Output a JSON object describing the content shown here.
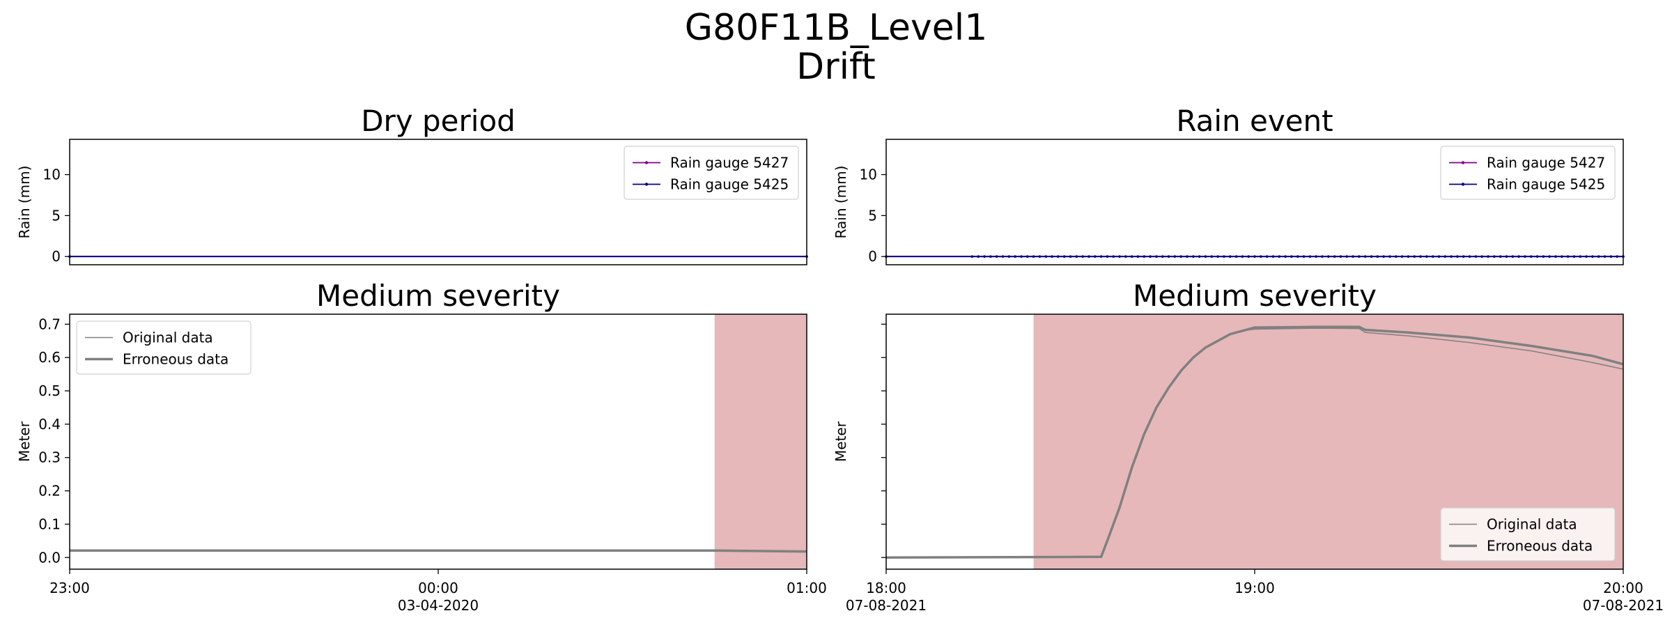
{
  "title": "G80F11B_Level1",
  "subtitle": "Drift",
  "colors": {
    "gauge_5427": "#800080",
    "gauge_5425": "#000080",
    "level_line": "#808080",
    "error_shade": "#e6b8ba"
  },
  "chart_data": [
    {
      "type": "line",
      "title": "Dry period",
      "ylabel": "Rain (mm)",
      "ylim": [
        -1,
        14.3
      ],
      "yticks": [
        0,
        5,
        10
      ],
      "xlim": [
        0,
        120
      ],
      "legend": "upper right",
      "series": [
        {
          "name": "Rain gauge 5427",
          "color": "#800080",
          "marker": true,
          "points": [
            [
              0,
              0
            ],
            [
              120,
              0
            ]
          ]
        },
        {
          "name": "Rain gauge 5425",
          "color": "#000080",
          "marker": true,
          "points": [
            [
              0,
              0
            ],
            [
              120,
              0
            ]
          ]
        }
      ]
    },
    {
      "type": "line",
      "title": "Rain event",
      "ylabel": "Rain (mm)",
      "ylim": [
        -1,
        14.3
      ],
      "yticks": [
        0,
        5,
        10
      ],
      "xlim": [
        0,
        120
      ],
      "legend": "upper right",
      "series": [
        {
          "name": "Rain gauge 5427",
          "color": "#800080",
          "marker": true,
          "points": [
            [
              0,
              0
            ],
            [
              120,
              0
            ]
          ]
        },
        {
          "name": "Rain gauge 5425",
          "color": "#000080",
          "marker": true,
          "points": [
            [
              0,
              0
            ],
            [
              14,
              0
            ],
            [
              15,
              0
            ],
            [
              16,
              0
            ],
            [
              17,
              0
            ],
            [
              18,
              0
            ],
            [
              19,
              0
            ],
            [
              20,
              0
            ],
            [
              21,
              0
            ],
            [
              22,
              0
            ],
            [
              23,
              0
            ],
            [
              24,
              0
            ],
            [
              25,
              0
            ],
            [
              26,
              0
            ],
            [
              27,
              0
            ],
            [
              28,
              0
            ],
            [
              29,
              0
            ],
            [
              30,
              0
            ],
            [
              31,
              0
            ],
            [
              32,
              0
            ],
            [
              33,
              0
            ],
            [
              34,
              0
            ],
            [
              35,
              0
            ],
            [
              36,
              0
            ],
            [
              37,
              0
            ],
            [
              38,
              0
            ],
            [
              39,
              0
            ],
            [
              40,
              0
            ],
            [
              41,
              0
            ],
            [
              42,
              0
            ],
            [
              43,
              0
            ],
            [
              44,
              0
            ],
            [
              45,
              0
            ],
            [
              46,
              0
            ],
            [
              47,
              0
            ],
            [
              48,
              0
            ],
            [
              49,
              0
            ],
            [
              50,
              0
            ],
            [
              51,
              0
            ],
            [
              52,
              0
            ],
            [
              53,
              0
            ],
            [
              54,
              0
            ],
            [
              55,
              0
            ],
            [
              56,
              0
            ],
            [
              57,
              0
            ],
            [
              58,
              0
            ],
            [
              59,
              0
            ],
            [
              60,
              0
            ],
            [
              61,
              0
            ],
            [
              62,
              0
            ],
            [
              63,
              0
            ],
            [
              64,
              0
            ],
            [
              65,
              0
            ],
            [
              66,
              0
            ],
            [
              67,
              0
            ],
            [
              68,
              0
            ],
            [
              69,
              0
            ],
            [
              70,
              0
            ],
            [
              71,
              0
            ],
            [
              72,
              0
            ],
            [
              73,
              0
            ],
            [
              74,
              0
            ],
            [
              75,
              0
            ],
            [
              76,
              0
            ],
            [
              77,
              0
            ],
            [
              78,
              0
            ],
            [
              79,
              0
            ],
            [
              80,
              0
            ],
            [
              81,
              0
            ],
            [
              82,
              0
            ],
            [
              83,
              0
            ],
            [
              84,
              0
            ],
            [
              85,
              0
            ],
            [
              86,
              0
            ],
            [
              87,
              0
            ],
            [
              88,
              0
            ],
            [
              89,
              0
            ],
            [
              90,
              0
            ],
            [
              91,
              0
            ],
            [
              92,
              0
            ],
            [
              93,
              0
            ],
            [
              94,
              0
            ],
            [
              95,
              0
            ],
            [
              96,
              0
            ],
            [
              97,
              0
            ],
            [
              98,
              0
            ],
            [
              99,
              0
            ],
            [
              100,
              0
            ],
            [
              101,
              0
            ],
            [
              102,
              0
            ],
            [
              103,
              0
            ],
            [
              104,
              0
            ],
            [
              105,
              0
            ],
            [
              106,
              0
            ],
            [
              107,
              0
            ],
            [
              108,
              0
            ],
            [
              109,
              0
            ],
            [
              110,
              0
            ],
            [
              111,
              0
            ],
            [
              112,
              0
            ],
            [
              113,
              0
            ],
            [
              114,
              0
            ],
            [
              115,
              0
            ],
            [
              116,
              0
            ],
            [
              117,
              0
            ],
            [
              118,
              0
            ],
            [
              119,
              0
            ],
            [
              120,
              0
            ]
          ]
        }
      ]
    },
    {
      "type": "line",
      "title": "Medium severity",
      "ylabel": "Meter",
      "ylim": [
        -0.035,
        0.73
      ],
      "yticks": [
        0.0,
        0.1,
        0.2,
        0.3,
        0.4,
        0.5,
        0.6,
        0.7
      ],
      "xlim": [
        0,
        120
      ],
      "xticks": [
        {
          "pos": 0,
          "label": "23:00",
          "sub": ""
        },
        {
          "pos": 60,
          "label": "00:00",
          "sub": "03-04-2020"
        },
        {
          "pos": 120,
          "label": "01:00",
          "sub": ""
        }
      ],
      "shaded_x": [
        105,
        120
      ],
      "legend": "upper left",
      "series": [
        {
          "name": "Original data",
          "width": 1.5,
          "points": [
            [
              0,
              0.021
            ],
            [
              105,
              0.021
            ],
            [
              120,
              0.018
            ]
          ]
        },
        {
          "name": "Erroneous data",
          "width": 3.5,
          "points": [
            [
              0,
              0.021
            ],
            [
              105,
              0.021
            ],
            [
              120,
              0.018
            ]
          ]
        }
      ]
    },
    {
      "type": "line",
      "title": "Medium severity",
      "ylabel": "Meter",
      "ylim": [
        -0.035,
        0.73
      ],
      "yticks": [
        0.0,
        0.1,
        0.2,
        0.3,
        0.4,
        0.5,
        0.6,
        0.7
      ],
      "ytick_labels": false,
      "xlim": [
        0,
        120
      ],
      "xticks": [
        {
          "pos": 0,
          "label": "18:00",
          "sub": "07-08-2021"
        },
        {
          "pos": 60,
          "label": "19:00",
          "sub": ""
        },
        {
          "pos": 120,
          "label": "20:00",
          "sub": "07-08-2021"
        }
      ],
      "shaded_x": [
        24,
        120
      ],
      "legend": "lower right",
      "series": [
        {
          "name": "Original data",
          "width": 1.5,
          "points": [
            [
              0,
              0.0
            ],
            [
              35,
              0.002
            ],
            [
              36,
              0.05
            ],
            [
              38,
              0.15
            ],
            [
              40,
              0.27
            ],
            [
              42,
              0.37
            ],
            [
              44,
              0.45
            ],
            [
              46,
              0.51
            ],
            [
              48,
              0.56
            ],
            [
              50,
              0.6
            ],
            [
              52,
              0.63
            ],
            [
              54,
              0.65
            ],
            [
              56,
              0.67
            ],
            [
              58,
              0.68
            ],
            [
              60,
              0.685
            ],
            [
              70,
              0.688
            ],
            [
              77,
              0.687
            ],
            [
              78,
              0.675
            ],
            [
              85,
              0.665
            ],
            [
              95,
              0.645
            ],
            [
              105,
              0.62
            ],
            [
              115,
              0.585
            ],
            [
              120,
              0.565
            ]
          ]
        },
        {
          "name": "Erroneous data",
          "width": 3.5,
          "points": [
            [
              0,
              0.0
            ],
            [
              35,
              0.002
            ],
            [
              36,
              0.05
            ],
            [
              38,
              0.15
            ],
            [
              40,
              0.27
            ],
            [
              42,
              0.37
            ],
            [
              44,
              0.45
            ],
            [
              46,
              0.51
            ],
            [
              48,
              0.56
            ],
            [
              50,
              0.6
            ],
            [
              52,
              0.63
            ],
            [
              54,
              0.65
            ],
            [
              56,
              0.67
            ],
            [
              58,
              0.68
            ],
            [
              60,
              0.69
            ],
            [
              70,
              0.692
            ],
            [
              77,
              0.692
            ],
            [
              78,
              0.683
            ],
            [
              85,
              0.675
            ],
            [
              95,
              0.66
            ],
            [
              105,
              0.635
            ],
            [
              115,
              0.605
            ],
            [
              120,
              0.58
            ]
          ]
        }
      ]
    }
  ]
}
